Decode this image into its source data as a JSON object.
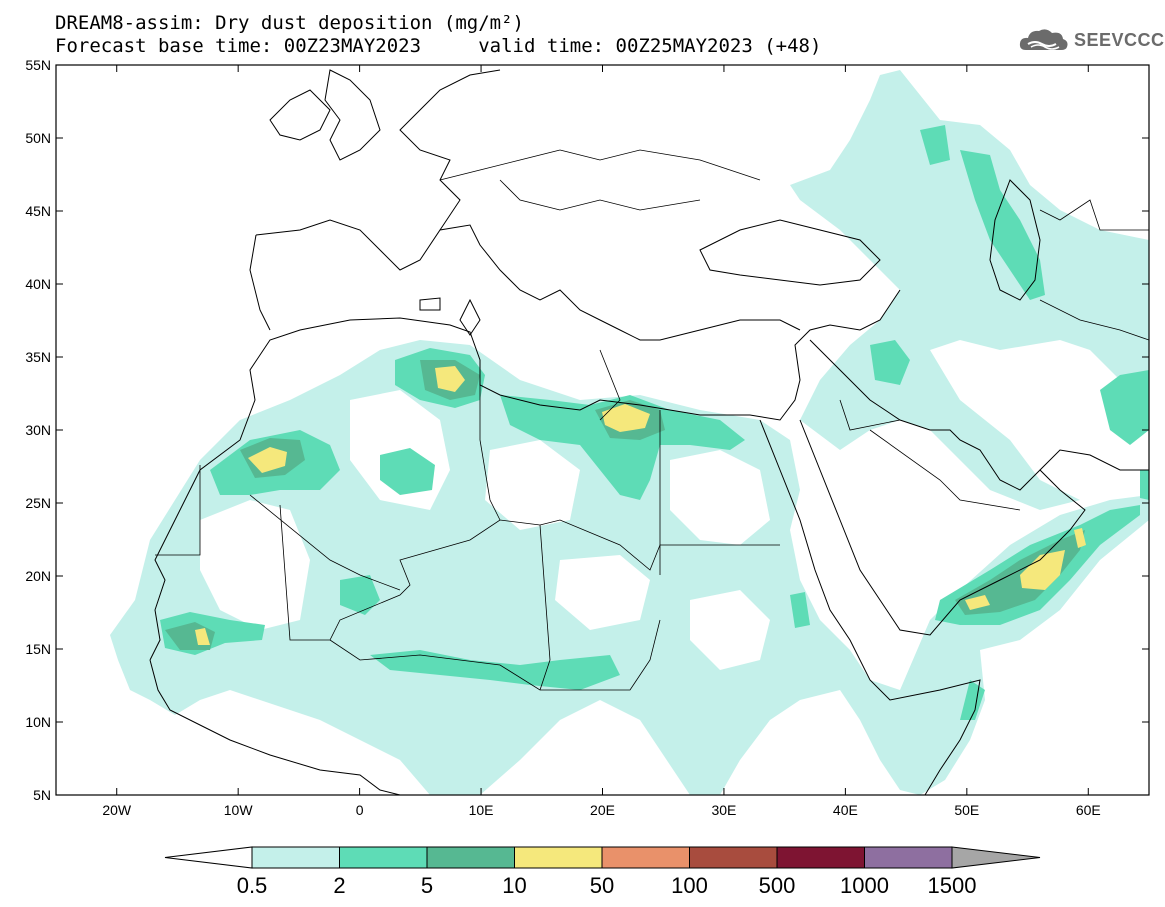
{
  "title_line1": "DREAM8-assim: Dry dust deposition (mg/m²)",
  "title_line2": "Forecast base time: 00Z23MAY2023     valid time: 00Z25MAY2023 (+48)",
  "logo": {
    "text": "SEEVCCC",
    "icon": "cloud-logo-icon",
    "color": "#6b6b6b"
  },
  "map": {
    "lon_range": [
      -25,
      65
    ],
    "lat_range": [
      5,
      55
    ],
    "lat_ticks": [
      {
        "value": 55,
        "label": "55N"
      },
      {
        "value": 50,
        "label": "50N"
      },
      {
        "value": 45,
        "label": "45N"
      },
      {
        "value": 40,
        "label": "40N"
      },
      {
        "value": 35,
        "label": "35N"
      },
      {
        "value": 30,
        "label": "30N"
      },
      {
        "value": 25,
        "label": "25N"
      },
      {
        "value": 20,
        "label": "20N"
      },
      {
        "value": 15,
        "label": "15N"
      },
      {
        "value": 10,
        "label": "10N"
      },
      {
        "value": 5,
        "label": "5N"
      }
    ],
    "lon_ticks": [
      {
        "value": -20,
        "label": "20W"
      },
      {
        "value": -10,
        "label": "10W"
      },
      {
        "value": 0,
        "label": "0"
      },
      {
        "value": 10,
        "label": "10E"
      },
      {
        "value": 20,
        "label": "20E"
      },
      {
        "value": 30,
        "label": "30E"
      },
      {
        "value": 40,
        "label": "40E"
      },
      {
        "value": 50,
        "label": "50E"
      },
      {
        "value": 60,
        "label": "60E"
      }
    ]
  },
  "colorbar": {
    "labels": [
      "0.5",
      "2",
      "5",
      "10",
      "50",
      "100",
      "500",
      "1000",
      "1500"
    ],
    "colors": [
      "#c4f0ea",
      "#5edcb6",
      "#56b892",
      "#f5e87c",
      "#e9916a",
      "#a84c3e",
      "#7e1432",
      "#8e6fa0"
    ],
    "under_color": "#ffffff",
    "over_color": "#a6a6a6"
  },
  "dust_levels": {
    "light": "#c4f0ea",
    "medium": "#5edcb6",
    "dark": "#56b892",
    "yellow": "#f5e87c"
  }
}
